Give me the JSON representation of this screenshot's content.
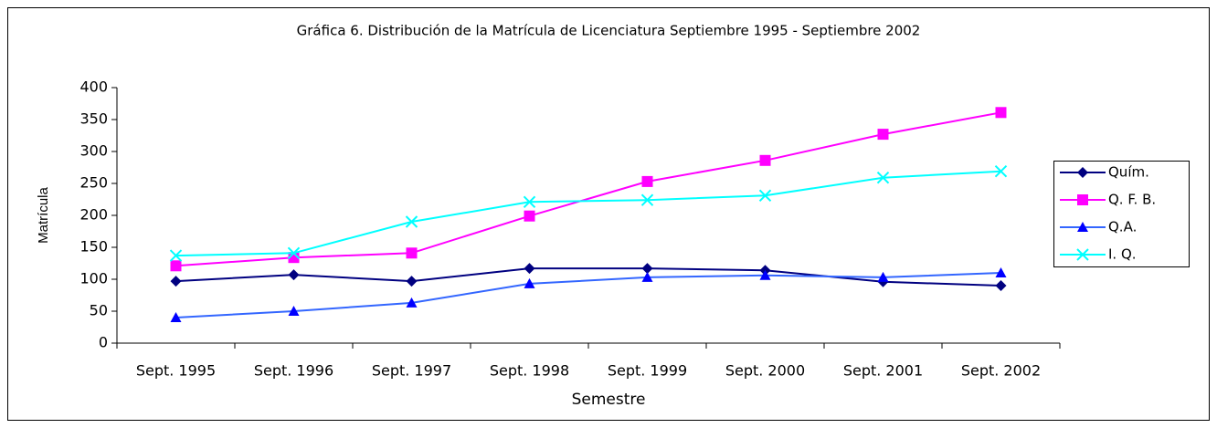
{
  "chart_data": {
    "type": "line",
    "title": "Gráfica 6. Distribución de la Matrícula de Licenciatura Septiembre 1995 - Septiembre 2002",
    "x_label": "Semestre",
    "y_label": "Matrícula",
    "categories": [
      "Sept. 1995",
      "Sept. 1996",
      "Sept. 1997",
      "Sept. 1998",
      "Sept. 1999",
      "Sept. 2000",
      "Sept. 2001",
      "Sept. 2002"
    ],
    "series": [
      {
        "name": "Quím.",
        "color": "#000080",
        "marker": "diamond",
        "values": [
          97,
          107,
          97,
          117,
          117,
          114,
          96,
          90
        ]
      },
      {
        "name": "Q. F. B.",
        "color": "#ff00ff",
        "marker": "square",
        "values": [
          121,
          134,
          141,
          199,
          253,
          286,
          327,
          361
        ]
      },
      {
        "name": "Q.A.",
        "color": "#3366ff",
        "marker": "triangle",
        "values": [
          40,
          50,
          63,
          93,
          103,
          106,
          103,
          110
        ]
      },
      {
        "name": "I. Q.",
        "color": "#00ffff",
        "marker": "x",
        "values": [
          137,
          141,
          190,
          221,
          224,
          231,
          259,
          269
        ]
      }
    ],
    "ylim": [
      0,
      400
    ],
    "yticks": [
      0,
      50,
      100,
      150,
      200,
      250,
      300,
      350,
      400
    ],
    "legend": "right"
  }
}
